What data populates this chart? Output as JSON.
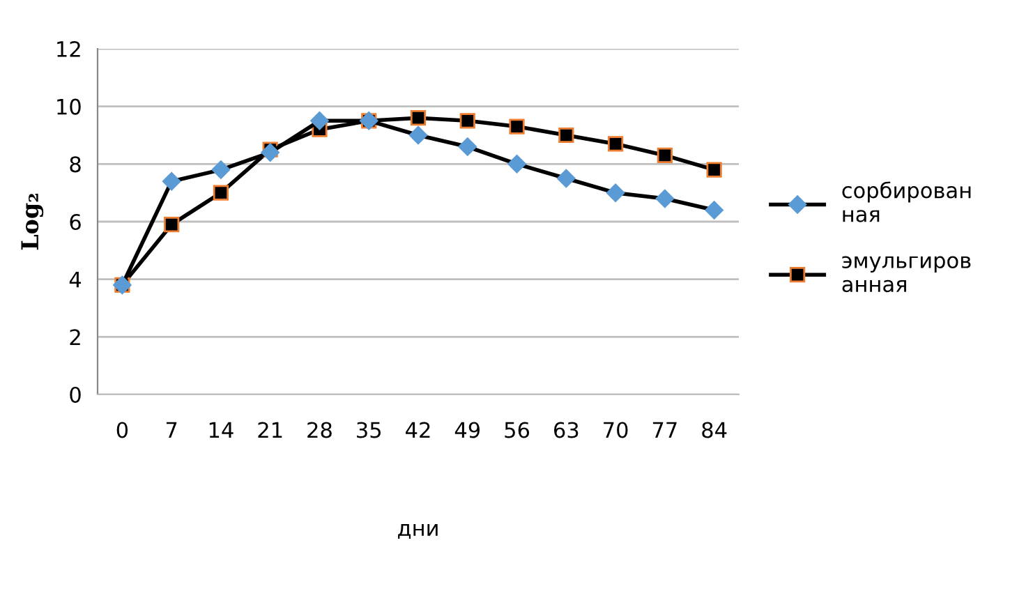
{
  "chart_data": {
    "type": "line",
    "xlabel": "дни",
    "ylabel": "Log₂",
    "categories": [
      "0",
      "7",
      "14",
      "21",
      "28",
      "35",
      "42",
      "49",
      "56",
      "63",
      "70",
      "77",
      "84"
    ],
    "series": [
      {
        "name": "сорбированная",
        "color": "#5b9bd5",
        "marker": "diamond",
        "values": [
          3.8,
          7.4,
          7.8,
          8.4,
          9.5,
          9.5,
          9.0,
          8.6,
          8.0,
          7.5,
          7.0,
          6.8,
          6.4
        ]
      },
      {
        "name": "эмульгированная",
        "color": "#000000",
        "marker": "square",
        "values": [
          3.8,
          5.9,
          7.0,
          8.5,
          9.2,
          9.5,
          9.6,
          9.5,
          9.3,
          9.0,
          8.7,
          8.3,
          7.8
        ]
      }
    ],
    "ylim": [
      0,
      12
    ],
    "yticks": [
      0,
      2,
      4,
      6,
      8,
      10,
      12
    ],
    "grid": "y",
    "legend": "right",
    "line_style": "solid"
  }
}
